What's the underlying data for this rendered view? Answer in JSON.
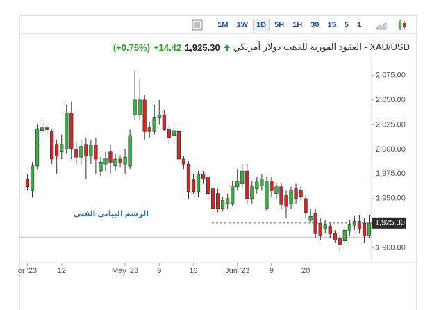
{
  "toolbar": {
    "intervals": [
      "1M",
      "1W",
      "1D",
      "5H",
      "1H",
      "30",
      "15",
      "5",
      "1"
    ],
    "selected": "1D"
  },
  "header": {
    "title": "XAU/USD - العقود الفورية للذهب دولار أمريكي",
    "price": "1,925.30",
    "change": "+14.42",
    "change_pct": "(+0.75%)"
  },
  "chart_data": {
    "type": "candlestick",
    "watermark": "الرسم البياني الفني",
    "up_color": "#3cb043",
    "down_color": "#cc2a2a",
    "categories": [
      "or '23",
      null,
      null,
      null,
      null,
      null,
      null,
      "12",
      null,
      null,
      null,
      null,
      null,
      null,
      null,
      null,
      null,
      null,
      null,
      null,
      "May '23",
      null,
      null,
      null,
      null,
      null,
      null,
      "9",
      null,
      null,
      null,
      null,
      null,
      null,
      "18",
      null,
      null,
      null,
      null,
      null,
      null,
      null,
      null,
      "Jun '23",
      null,
      null,
      null,
      null,
      null,
      null,
      "9",
      null,
      null,
      null,
      null,
      null,
      null,
      "20",
      null,
      null,
      null,
      null,
      null,
      null,
      null,
      null,
      null,
      null,
      null,
      null,
      null
    ],
    "open": [
      1970,
      1958,
      1983,
      2019,
      2022,
      2018,
      2005,
      1998,
      2000,
      2037,
      2000,
      1992,
      2005,
      1993,
      2004,
      1978,
      1985,
      1998,
      1983,
      1990,
      1985,
      1983,
      2035,
      2035,
      2050,
      2022,
      2018,
      2032,
      2035,
      2020,
      2014,
      2018,
      1990,
      1985,
      1970,
      1957,
      1975,
      1972,
      1960,
      1955,
      1940,
      1945,
      1945,
      1962,
      1965,
      1978,
      1950,
      1960,
      1963,
      1940,
      1968,
      1955,
      1962,
      1953,
      1945,
      1960,
      1958,
      1950,
      1928,
      1935,
      1925,
      1920,
      1922,
      1915,
      1910,
      1907,
      1917,
      1923,
      1927,
      1925,
      1913
    ],
    "high": [
      1975,
      1987,
      2025,
      2028,
      2025,
      2020,
      2010,
      2015,
      2045,
      2048,
      2008,
      2010,
      2012,
      2010,
      2012,
      1992,
      1998,
      2005,
      1995,
      1994,
      2000,
      2020,
      2081,
      2072,
      2055,
      2028,
      2045,
      2050,
      2040,
      2025,
      2022,
      2022,
      1993,
      1988,
      1975,
      1978,
      1978,
      1976,
      1965,
      1960,
      1952,
      1955,
      1968,
      1980,
      1985,
      1985,
      1968,
      1972,
      1975,
      1972,
      1972,
      1966,
      1966,
      1958,
      1962,
      1965,
      1962,
      1954,
      1940,
      1940,
      1930,
      1928,
      1926,
      1918,
      1913,
      1922,
      1928,
      1932,
      1933,
      1930,
      1933
    ],
    "low": [
      1958,
      1951,
      1980,
      2010,
      2015,
      1985,
      1975,
      1990,
      1995,
      1990,
      1985,
      1985,
      1970,
      1985,
      1975,
      1973,
      1978,
      1975,
      1978,
      1982,
      1975,
      1980,
      2030,
      2030,
      2010,
      2012,
      2015,
      2025,
      2018,
      2005,
      2008,
      1985,
      1980,
      1950,
      1955,
      1952,
      1965,
      1950,
      1935,
      1936,
      1937,
      1940,
      1942,
      1958,
      1960,
      1945,
      1945,
      1955,
      1958,
      1938,
      1952,
      1950,
      1940,
      1930,
      1940,
      1945,
      1948,
      1930,
      1925,
      1910,
      1908,
      1915,
      1910,
      1905,
      1895,
      1904,
      1912,
      1918,
      1915,
      1905,
      1910
    ],
    "close": [
      1962,
      1983,
      2021,
      2022,
      2020,
      1990,
      1993,
      2005,
      2037,
      2001,
      1992,
      2003,
      1993,
      2004,
      1990,
      1987,
      1991,
      1987,
      1990,
      1987,
      1992,
      2014,
      2050,
      2050,
      2018,
      2018,
      2032,
      2035,
      2020,
      2012,
      2019,
      1990,
      1985,
      1957,
      1957,
      1975,
      1970,
      1955,
      1940,
      1940,
      1948,
      1950,
      1963,
      1968,
      1978,
      1950,
      1962,
      1967,
      1970,
      1967,
      1958,
      1962,
      1944,
      1942,
      1958,
      1950,
      1952,
      1936,
      1932,
      1915,
      1912,
      1924,
      1915,
      1908,
      1903,
      1918,
      1924,
      1927,
      1919,
      1912,
      1925.3
    ],
    "last_price": {
      "value": 1925.3,
      "label": "1,925.30"
    },
    "prev_close": 1910.88,
    "ylim": [
      1885,
      2088
    ],
    "yticks": [
      {
        "value": 1900,
        "label": "1,900.00"
      },
      {
        "value": 1950,
        "label": "1,950.00"
      },
      {
        "value": 1975,
        "label": "1,975.00"
      },
      {
        "value": 2000,
        "label": "2,000.00"
      },
      {
        "value": 2025,
        "label": "2,025.00"
      },
      {
        "value": 2050,
        "label": "2,050.00"
      },
      {
        "value": 2075,
        "label": "2,075.00"
      }
    ],
    "grid": false
  }
}
